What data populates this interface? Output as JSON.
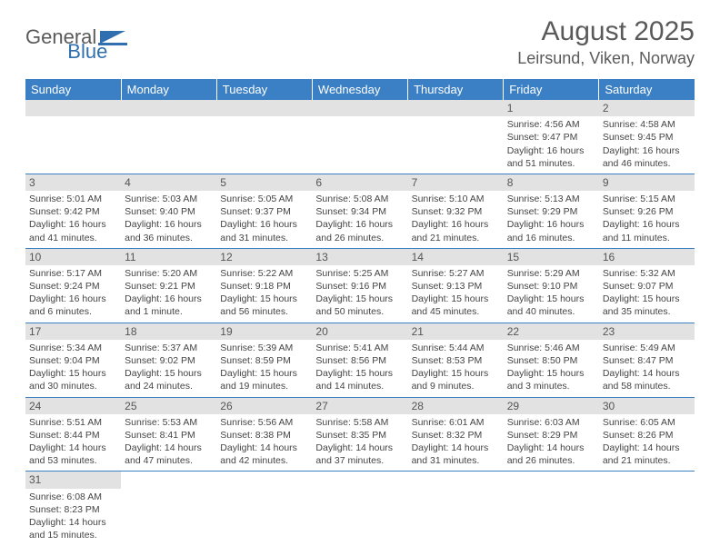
{
  "brand": {
    "part1": "General",
    "part2": "Blue",
    "logo_color": "#2f6fb0"
  },
  "title": "August 2025",
  "location": "Leirsund, Viken, Norway",
  "colors": {
    "header_bg": "#3b7fc4",
    "daynum_bg": "#e2e2e2",
    "rule": "#3b7fc4"
  },
  "weekdays": [
    "Sunday",
    "Monday",
    "Tuesday",
    "Wednesday",
    "Thursday",
    "Friday",
    "Saturday"
  ],
  "grid": [
    [
      null,
      null,
      null,
      null,
      null,
      {
        "n": "1",
        "sunrise": "4:56 AM",
        "sunset": "9:47 PM",
        "daylight": "16 hours and 51 minutes."
      },
      {
        "n": "2",
        "sunrise": "4:58 AM",
        "sunset": "9:45 PM",
        "daylight": "16 hours and 46 minutes."
      }
    ],
    [
      {
        "n": "3",
        "sunrise": "5:01 AM",
        "sunset": "9:42 PM",
        "daylight": "16 hours and 41 minutes."
      },
      {
        "n": "4",
        "sunrise": "5:03 AM",
        "sunset": "9:40 PM",
        "daylight": "16 hours and 36 minutes."
      },
      {
        "n": "5",
        "sunrise": "5:05 AM",
        "sunset": "9:37 PM",
        "daylight": "16 hours and 31 minutes."
      },
      {
        "n": "6",
        "sunrise": "5:08 AM",
        "sunset": "9:34 PM",
        "daylight": "16 hours and 26 minutes."
      },
      {
        "n": "7",
        "sunrise": "5:10 AM",
        "sunset": "9:32 PM",
        "daylight": "16 hours and 21 minutes."
      },
      {
        "n": "8",
        "sunrise": "5:13 AM",
        "sunset": "9:29 PM",
        "daylight": "16 hours and 16 minutes."
      },
      {
        "n": "9",
        "sunrise": "5:15 AM",
        "sunset": "9:26 PM",
        "daylight": "16 hours and 11 minutes."
      }
    ],
    [
      {
        "n": "10",
        "sunrise": "5:17 AM",
        "sunset": "9:24 PM",
        "daylight": "16 hours and 6 minutes."
      },
      {
        "n": "11",
        "sunrise": "5:20 AM",
        "sunset": "9:21 PM",
        "daylight": "16 hours and 1 minute."
      },
      {
        "n": "12",
        "sunrise": "5:22 AM",
        "sunset": "9:18 PM",
        "daylight": "15 hours and 56 minutes."
      },
      {
        "n": "13",
        "sunrise": "5:25 AM",
        "sunset": "9:16 PM",
        "daylight": "15 hours and 50 minutes."
      },
      {
        "n": "14",
        "sunrise": "5:27 AM",
        "sunset": "9:13 PM",
        "daylight": "15 hours and 45 minutes."
      },
      {
        "n": "15",
        "sunrise": "5:29 AM",
        "sunset": "9:10 PM",
        "daylight": "15 hours and 40 minutes."
      },
      {
        "n": "16",
        "sunrise": "5:32 AM",
        "sunset": "9:07 PM",
        "daylight": "15 hours and 35 minutes."
      }
    ],
    [
      {
        "n": "17",
        "sunrise": "5:34 AM",
        "sunset": "9:04 PM",
        "daylight": "15 hours and 30 minutes."
      },
      {
        "n": "18",
        "sunrise": "5:37 AM",
        "sunset": "9:02 PM",
        "daylight": "15 hours and 24 minutes."
      },
      {
        "n": "19",
        "sunrise": "5:39 AM",
        "sunset": "8:59 PM",
        "daylight": "15 hours and 19 minutes."
      },
      {
        "n": "20",
        "sunrise": "5:41 AM",
        "sunset": "8:56 PM",
        "daylight": "15 hours and 14 minutes."
      },
      {
        "n": "21",
        "sunrise": "5:44 AM",
        "sunset": "8:53 PM",
        "daylight": "15 hours and 9 minutes."
      },
      {
        "n": "22",
        "sunrise": "5:46 AM",
        "sunset": "8:50 PM",
        "daylight": "15 hours and 3 minutes."
      },
      {
        "n": "23",
        "sunrise": "5:49 AM",
        "sunset": "8:47 PM",
        "daylight": "14 hours and 58 minutes."
      }
    ],
    [
      {
        "n": "24",
        "sunrise": "5:51 AM",
        "sunset": "8:44 PM",
        "daylight": "14 hours and 53 minutes."
      },
      {
        "n": "25",
        "sunrise": "5:53 AM",
        "sunset": "8:41 PM",
        "daylight": "14 hours and 47 minutes."
      },
      {
        "n": "26",
        "sunrise": "5:56 AM",
        "sunset": "8:38 PM",
        "daylight": "14 hours and 42 minutes."
      },
      {
        "n": "27",
        "sunrise": "5:58 AM",
        "sunset": "8:35 PM",
        "daylight": "14 hours and 37 minutes."
      },
      {
        "n": "28",
        "sunrise": "6:01 AM",
        "sunset": "8:32 PM",
        "daylight": "14 hours and 31 minutes."
      },
      {
        "n": "29",
        "sunrise": "6:03 AM",
        "sunset": "8:29 PM",
        "daylight": "14 hours and 26 minutes."
      },
      {
        "n": "30",
        "sunrise": "6:05 AM",
        "sunset": "8:26 PM",
        "daylight": "14 hours and 21 minutes."
      }
    ],
    [
      {
        "n": "31",
        "sunrise": "6:08 AM",
        "sunset": "8:23 PM",
        "daylight": "14 hours and 15 minutes."
      },
      null,
      null,
      null,
      null,
      null,
      null
    ]
  ]
}
